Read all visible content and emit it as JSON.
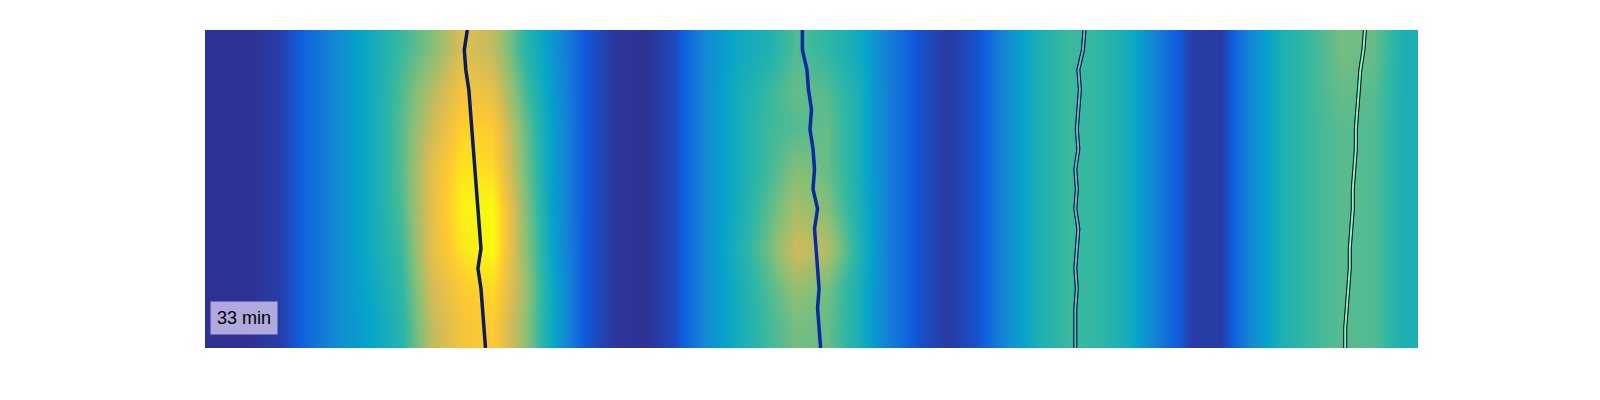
{
  "chart_data": {
    "type": "heatmap",
    "label": "33 min",
    "tick_labels": false,
    "xlim": [
      -0.5,
      39.5
    ],
    "ylim": [
      -0.5,
      7.5
    ],
    "zlim": [
      0,
      1
    ],
    "cells": [
      [
        0.02,
        0.02,
        0.05,
        0.18,
        0.3,
        0.38,
        0.48,
        0.72,
        0.85,
        0.88,
        0.66,
        0.38,
        0.12,
        0.03,
        0.02,
        0.08,
        0.28,
        0.42,
        0.52,
        0.6,
        0.58,
        0.45,
        0.25,
        0.1,
        0.04,
        0.1,
        0.3,
        0.45,
        0.52,
        0.5,
        0.42,
        0.22,
        0.05,
        0.04,
        0.28,
        0.45,
        0.52,
        0.56,
        0.55,
        0.45
      ],
      [
        0.02,
        0.02,
        0.05,
        0.18,
        0.3,
        0.4,
        0.5,
        0.76,
        0.88,
        0.92,
        0.68,
        0.38,
        0.12,
        0.03,
        0.02,
        0.08,
        0.28,
        0.42,
        0.54,
        0.65,
        0.6,
        0.45,
        0.25,
        0.1,
        0.04,
        0.1,
        0.3,
        0.45,
        0.52,
        0.5,
        0.42,
        0.22,
        0.05,
        0.04,
        0.28,
        0.45,
        0.52,
        0.56,
        0.55,
        0.45
      ],
      [
        0.02,
        0.02,
        0.05,
        0.18,
        0.3,
        0.42,
        0.52,
        0.8,
        0.95,
        1.0,
        0.66,
        0.36,
        0.12,
        0.03,
        0.02,
        0.08,
        0.28,
        0.44,
        0.58,
        0.75,
        0.7,
        0.48,
        0.25,
        0.1,
        0.04,
        0.1,
        0.3,
        0.45,
        0.52,
        0.5,
        0.42,
        0.22,
        0.05,
        0.04,
        0.28,
        0.45,
        0.52,
        0.56,
        0.55,
        0.45
      ],
      [
        0.02,
        0.02,
        0.05,
        0.18,
        0.3,
        0.42,
        0.55,
        0.8,
        0.98,
        1.0,
        0.65,
        0.35,
        0.12,
        0.03,
        0.02,
        0.08,
        0.28,
        0.42,
        0.55,
        0.68,
        0.62,
        0.46,
        0.25,
        0.1,
        0.04,
        0.1,
        0.3,
        0.45,
        0.52,
        0.5,
        0.42,
        0.22,
        0.05,
        0.04,
        0.28,
        0.45,
        0.52,
        0.56,
        0.55,
        0.45
      ],
      [
        0.02,
        0.02,
        0.05,
        0.18,
        0.3,
        0.42,
        0.56,
        0.8,
        0.95,
        0.92,
        0.62,
        0.35,
        0.12,
        0.03,
        0.02,
        0.08,
        0.28,
        0.42,
        0.52,
        0.62,
        0.58,
        0.45,
        0.25,
        0.1,
        0.04,
        0.1,
        0.3,
        0.45,
        0.52,
        0.5,
        0.42,
        0.22,
        0.05,
        0.04,
        0.28,
        0.45,
        0.52,
        0.56,
        0.55,
        0.45
      ],
      [
        0.02,
        0.02,
        0.05,
        0.18,
        0.3,
        0.42,
        0.56,
        0.75,
        0.9,
        0.88,
        0.6,
        0.35,
        0.12,
        0.03,
        0.02,
        0.08,
        0.28,
        0.42,
        0.52,
        0.55,
        0.58,
        0.45,
        0.25,
        0.1,
        0.04,
        0.1,
        0.3,
        0.45,
        0.52,
        0.5,
        0.42,
        0.22,
        0.05,
        0.04,
        0.28,
        0.45,
        0.52,
        0.56,
        0.55,
        0.45
      ],
      [
        0.02,
        0.02,
        0.05,
        0.18,
        0.3,
        0.42,
        0.55,
        0.7,
        0.85,
        0.8,
        0.55,
        0.33,
        0.12,
        0.03,
        0.02,
        0.08,
        0.28,
        0.42,
        0.5,
        0.58,
        0.55,
        0.45,
        0.25,
        0.1,
        0.04,
        0.1,
        0.3,
        0.45,
        0.52,
        0.5,
        0.42,
        0.22,
        0.05,
        0.04,
        0.28,
        0.45,
        0.52,
        0.58,
        0.56,
        0.45
      ],
      [
        0.02,
        0.02,
        0.05,
        0.18,
        0.3,
        0.42,
        0.52,
        0.62,
        0.78,
        0.72,
        0.5,
        0.32,
        0.12,
        0.03,
        0.02,
        0.08,
        0.28,
        0.4,
        0.45,
        0.55,
        0.5,
        0.42,
        0.25,
        0.1,
        0.04,
        0.1,
        0.3,
        0.45,
        0.52,
        0.5,
        0.42,
        0.22,
        0.05,
        0.04,
        0.28,
        0.45,
        0.52,
        0.6,
        0.58,
        0.45
      ]
    ],
    "series": [
      {
        "color": "#0b1b5c",
        "line_style": "solid",
        "x": [
          8.75,
          8.7,
          8.65,
          8.6,
          8.5,
          8.6,
          8.55,
          8.5,
          8.45,
          8.4,
          8.35,
          8.3,
          8.25,
          8.2,
          8.1,
          8.05,
          8.15
        ],
        "y": [
          -0.5,
          0,
          0.5,
          1,
          1.5,
          2,
          2.5,
          3,
          3.5,
          4,
          4.5,
          5,
          5.5,
          6,
          6.5,
          7,
          7.5
        ]
      },
      {
        "color": "#0a2aa0",
        "line_style": "solid",
        "x": [
          19.8,
          19.75,
          19.7,
          19.75,
          19.7,
          19.65,
          19.6,
          19.7,
          19.55,
          19.6,
          19.55,
          19.45,
          19.5,
          19.4,
          19.35,
          19.2,
          19.2
        ],
        "y": [
          -0.5,
          0,
          0.5,
          1,
          1.5,
          2,
          2.5,
          3,
          3.5,
          4,
          4.5,
          5,
          5.5,
          6,
          6.5,
          7,
          7.5
        ]
      },
      {
        "color": "#5ab8f0",
        "line_style": "outlined",
        "x": [
          28.2,
          28.2,
          28.2,
          28.25,
          28.2,
          28.25,
          28.3,
          28.2,
          28.25,
          28.2,
          28.3,
          28.25,
          28.3,
          28.35,
          28.3,
          28.45,
          28.5
        ],
        "y": [
          -0.5,
          0,
          0.5,
          1,
          1.5,
          2,
          2.5,
          3,
          3.5,
          4,
          4.5,
          5,
          5.5,
          6,
          6.5,
          7,
          7.5
        ]
      },
      {
        "color": "#7ff5d8",
        "line_style": "outlined",
        "x": [
          37.1,
          37.1,
          37.15,
          37.2,
          37.25,
          37.25,
          37.3,
          37.35,
          37.35,
          37.4,
          37.45,
          37.45,
          37.5,
          37.55,
          37.6,
          37.7,
          37.75
        ],
        "y": [
          -0.5,
          0,
          0.5,
          1,
          1.5,
          2,
          2.5,
          3,
          3.5,
          4,
          4.5,
          5,
          5.5,
          6,
          6.5,
          7,
          7.5
        ]
      }
    ]
  }
}
